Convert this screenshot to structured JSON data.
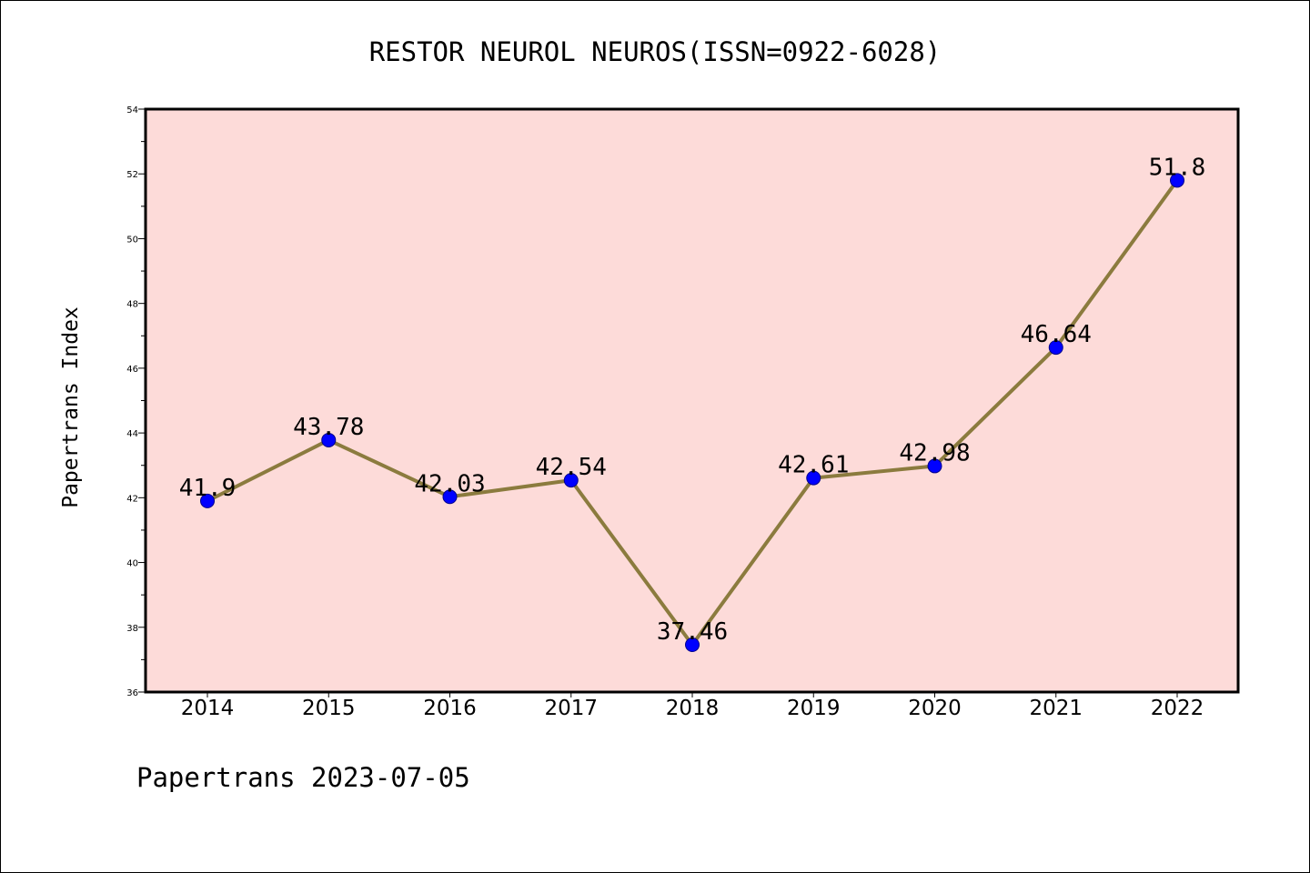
{
  "footer": {
    "text": "Papertrans 2023-07-05"
  },
  "colors": {
    "plot_background": "#fddbd9",
    "line": "#8b7b3e",
    "marker_fill": "#0000ff",
    "marker_stroke": "#00008b",
    "axis": "#000000"
  },
  "chart_data": {
    "type": "line",
    "title": "RESTOR NEUROL NEUROS(ISSN=0922-6028)",
    "xlabel": "",
    "ylabel": "Papertrans Index",
    "categories": [
      "2014",
      "2015",
      "2016",
      "2017",
      "2018",
      "2019",
      "2020",
      "2021",
      "2022"
    ],
    "series": [
      {
        "values": [
          41.9,
          43.78,
          42.03,
          42.54,
          37.46,
          42.61,
          42.98,
          46.64,
          51.8
        ]
      }
    ],
    "data_labels": [
      "41.9",
      "43.78",
      "42.03",
      "42.54",
      "37.46",
      "42.61",
      "42.98",
      "46.64",
      "51.8"
    ],
    "ylim": [
      36,
      54
    ],
    "y_major_ticks": [
      "36",
      "38",
      "40",
      "42",
      "44",
      "46",
      "48",
      "50",
      "52",
      "54"
    ],
    "y_minor_step": 1,
    "grid": false,
    "legend": "none"
  }
}
